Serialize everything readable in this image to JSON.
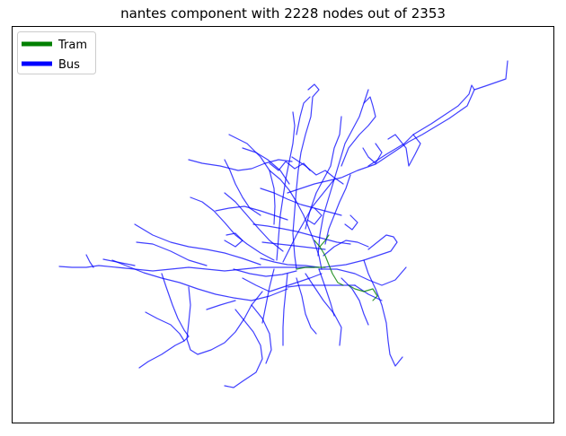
{
  "title": "nantes component with 2228 nodes out of 2353",
  "legend": {
    "placement": "top-left",
    "items": [
      {
        "label": "Tram",
        "color": "#008000"
      },
      {
        "label": "Bus",
        "color": "#0000ff"
      }
    ]
  },
  "colors": {
    "frame": "#000000",
    "bus": "#0000ff",
    "tram": "#008000"
  }
}
